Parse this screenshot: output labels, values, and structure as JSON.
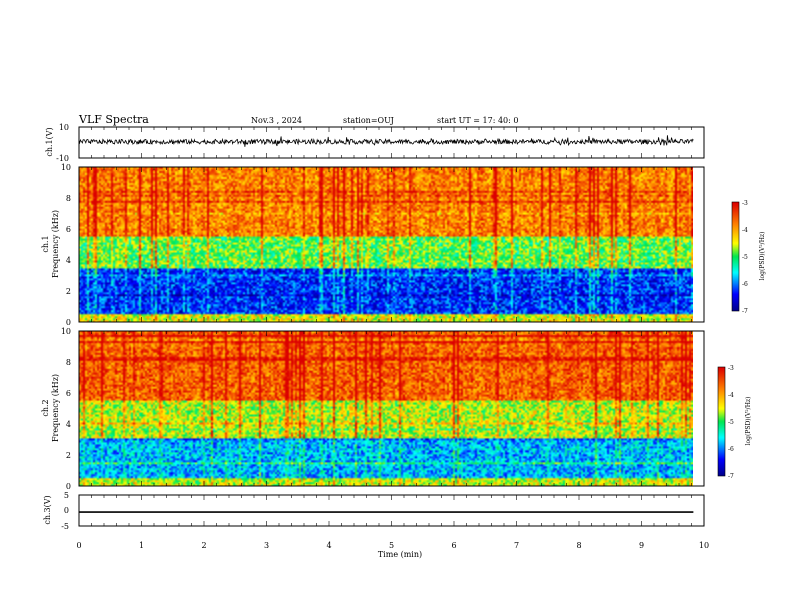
{
  "header": {
    "title": "VLF Spectra",
    "date": "Nov.3 , 2024",
    "station": "station=OUJ",
    "start_time": "start UT = 17: 40: 0"
  },
  "chart_data": [
    {
      "type": "line",
      "panel": "ch1-waveform",
      "ylabel": "ch.1(V)",
      "ylim": [
        -10,
        10
      ],
      "ytick_labels": [
        "10",
        "-10"
      ],
      "x_unit": "min",
      "xlim": [
        0,
        10
      ],
      "data_end_min": 9.83,
      "baseline_v": 0.5,
      "amplitude_v": 1.5
    },
    {
      "type": "heatmap",
      "panel": "ch1-spectrogram",
      "ylabel_line1": "ch.1",
      "ylabel_line2": "Frequency (kHz)",
      "ylim": [
        0,
        10
      ],
      "ytick_labels": [
        "0",
        "2",
        "4",
        "6",
        "8",
        "10"
      ],
      "xlim": [
        0,
        10
      ],
      "data_end_min": 9.83,
      "colorbar": {
        "label": "log(PSD)(V²/Hz)",
        "range": [
          -7,
          -3
        ],
        "tick_labels": [
          "-3",
          "-4",
          "-5",
          "-6",
          "-7"
        ]
      },
      "bands": [
        {
          "f_kHz": [
            0,
            0.5
          ],
          "log_psd": -4.5
        },
        {
          "f_kHz": [
            0.5,
            3.5
          ],
          "log_psd": -6.3
        },
        {
          "f_kHz": [
            3.5,
            5.5
          ],
          "log_psd": -4.9
        },
        {
          "f_kHz": [
            5.5,
            10
          ],
          "log_psd": -3.8
        }
      ]
    },
    {
      "type": "heatmap",
      "panel": "ch2-spectrogram",
      "ylabel_line1": "ch.2",
      "ylabel_line2": "Frequency (kHz)",
      "ylim": [
        0,
        10
      ],
      "ytick_labels": [
        "0",
        "2",
        "4",
        "6",
        "8",
        "10"
      ],
      "xlim": [
        0,
        10
      ],
      "data_end_min": 9.83,
      "colorbar": {
        "label": "log(PSD)(V²/Hz)",
        "range": [
          -7,
          -3
        ],
        "tick_labels": [
          "-3",
          "-4",
          "-5",
          "-6",
          "-7"
        ]
      },
      "bands": [
        {
          "f_kHz": [
            0,
            0.5
          ],
          "log_psd": -4.6
        },
        {
          "f_kHz": [
            0.5,
            3.0
          ],
          "log_psd": -5.8
        },
        {
          "f_kHz": [
            3.0,
            5.5
          ],
          "log_psd": -4.6
        },
        {
          "f_kHz": [
            5.5,
            10
          ],
          "log_psd": -3.6
        }
      ]
    },
    {
      "type": "line",
      "panel": "ch3-waveform",
      "ylabel": "ch.3(V)",
      "ylim": [
        -5,
        5
      ],
      "ytick_labels": [
        "5",
        "0",
        "-5"
      ],
      "xlim": [
        0,
        10
      ],
      "data_end_min": 9.83,
      "constant_v": -0.5,
      "xlabel": "Time (min)",
      "xtick_labels": [
        "0",
        "1",
        "2",
        "3",
        "4",
        "5",
        "6",
        "7",
        "8",
        "9",
        "10"
      ]
    }
  ]
}
